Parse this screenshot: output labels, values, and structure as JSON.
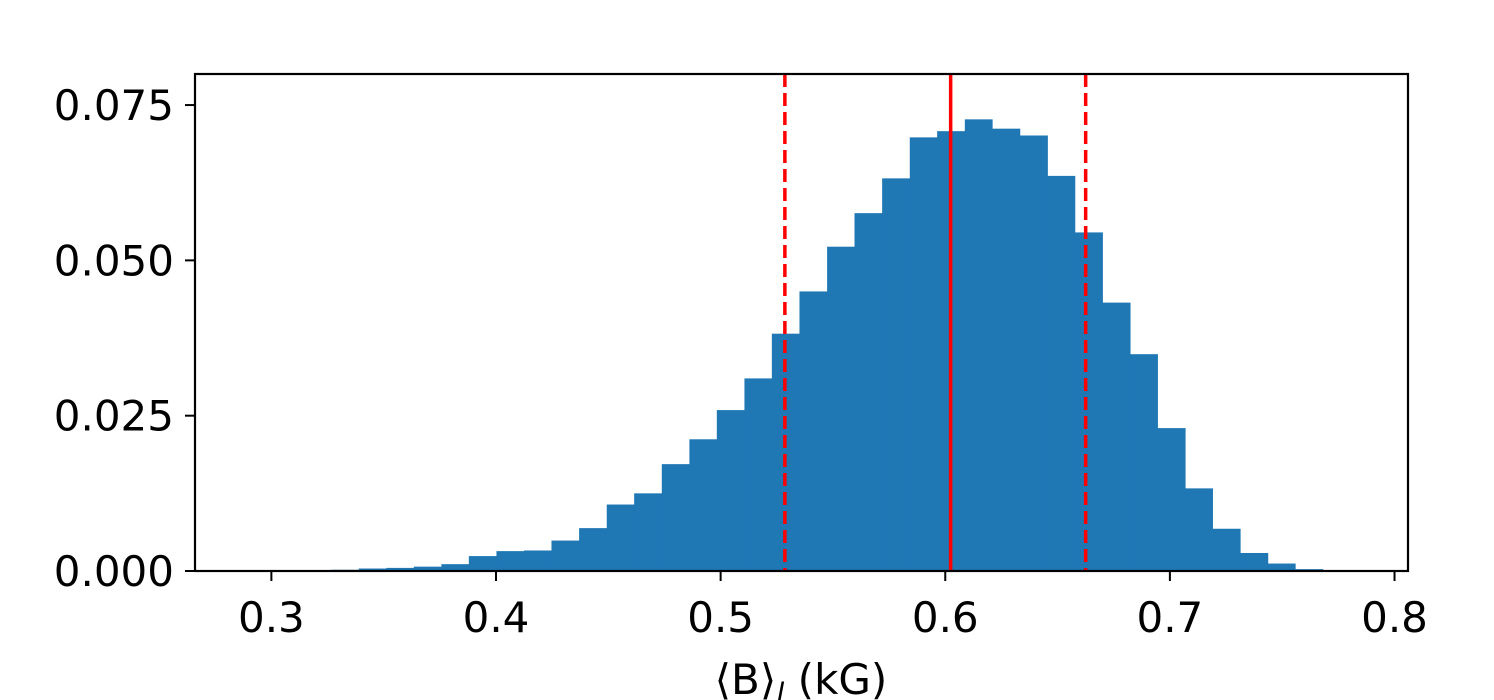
{
  "chart_data": {
    "type": "bar",
    "xlabel_main": "⟨B⟩",
    "xlabel_sub": "l",
    "xlabel_unit": " (kG)",
    "xlim": [
      0.266,
      0.806
    ],
    "ylim": [
      0.0,
      0.08
    ],
    "x_ticks": [
      {
        "value": 0.3,
        "label": "0.3"
      },
      {
        "value": 0.4,
        "label": "0.4"
      },
      {
        "value": 0.5,
        "label": "0.5"
      },
      {
        "value": 0.6,
        "label": "0.6"
      },
      {
        "value": 0.7,
        "label": "0.7"
      },
      {
        "value": 0.8,
        "label": "0.8"
      }
    ],
    "y_ticks": [
      {
        "value": 0.0,
        "label": "0.000"
      },
      {
        "value": 0.025,
        "label": "0.025"
      },
      {
        "value": 0.05,
        "label": "0.050"
      },
      {
        "value": 0.075,
        "label": "0.075"
      }
    ],
    "bin_edges": [
      0.2898,
      0.3021,
      0.3144,
      0.3266,
      0.3389,
      0.3512,
      0.3634,
      0.3757,
      0.3879,
      0.4002,
      0.4125,
      0.4247,
      0.437,
      0.4493,
      0.4615,
      0.4738,
      0.4861,
      0.4983,
      0.5106,
      0.5228,
      0.5351,
      0.5474,
      0.5596,
      0.5719,
      0.5842,
      0.5964,
      0.6087,
      0.6209,
      0.6332,
      0.6455,
      0.6577,
      0.67,
      0.6823,
      0.6945,
      0.7068,
      0.719,
      0.7313,
      0.7436,
      0.7558,
      0.7681,
      0.7804
    ],
    "values": [
      0.0,
      0.0,
      0.0001,
      0.0002,
      0.0004,
      0.0005,
      0.0007,
      0.0011,
      0.0024,
      0.0032,
      0.0033,
      0.0049,
      0.0069,
      0.0107,
      0.0125,
      0.0172,
      0.0212,
      0.0259,
      0.031,
      0.0382,
      0.045,
      0.0522,
      0.0576,
      0.0632,
      0.0698,
      0.0708,
      0.0727,
      0.0712,
      0.0701,
      0.0636,
      0.0545,
      0.0432,
      0.0349,
      0.023,
      0.0133,
      0.0068,
      0.0029,
      0.0012,
      0.0003,
      0.0
    ],
    "bar_color": "#1f77b4",
    "median": 0.6024,
    "lower_bound": 0.5286,
    "upper_bound": 0.6625,
    "line_color": "#ff0000"
  }
}
